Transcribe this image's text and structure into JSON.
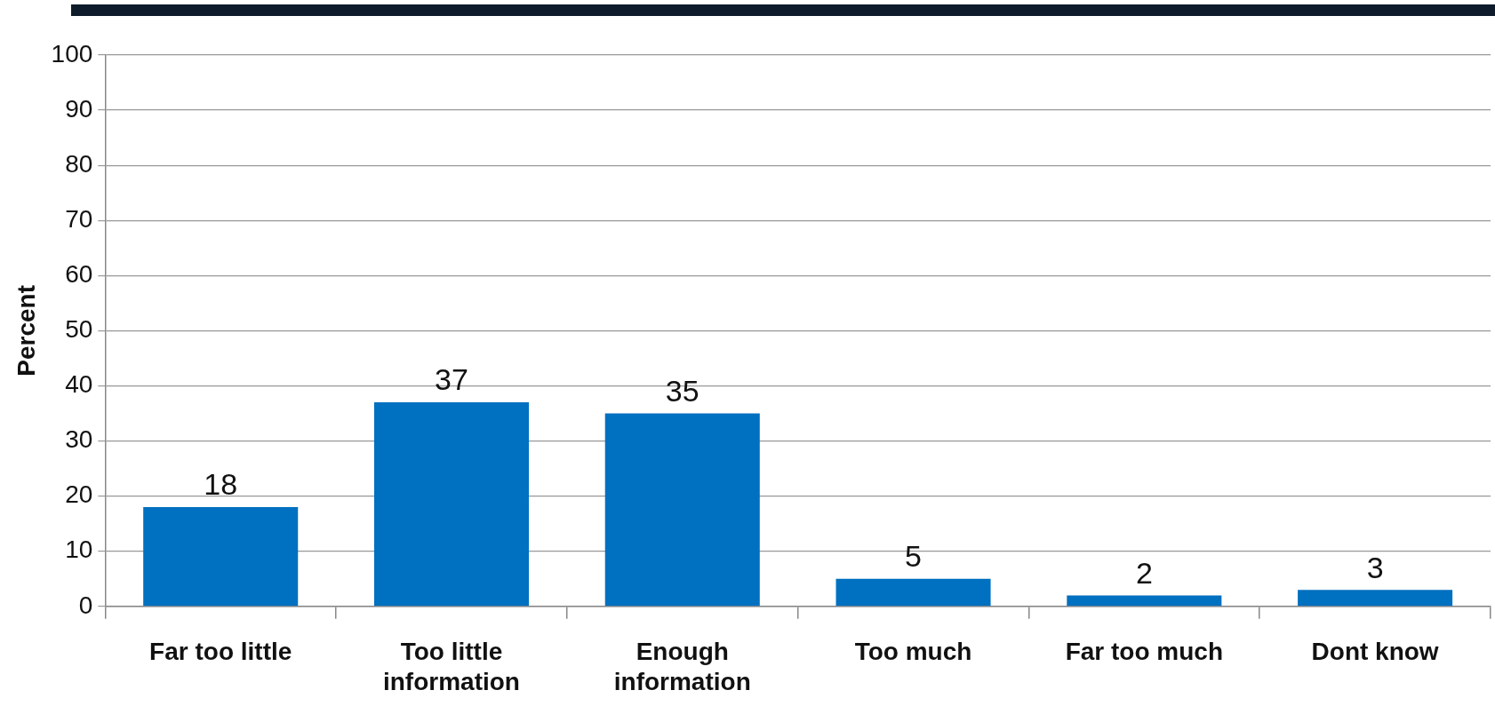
{
  "chart_data": {
    "type": "bar",
    "ylabel": "Percent",
    "categories": [
      "Far too little",
      "Too little information",
      "Enough information",
      "Too much",
      "Far too much",
      "Dont know"
    ],
    "values": [
      18,
      37,
      35,
      5,
      2,
      3
    ],
    "color": "#0070c0",
    "ylim": [
      0,
      100
    ],
    "yticks": [
      0,
      10,
      20,
      30,
      40,
      50,
      60,
      70,
      80,
      90,
      100
    ],
    "grid": "y",
    "data_labels": true
  }
}
